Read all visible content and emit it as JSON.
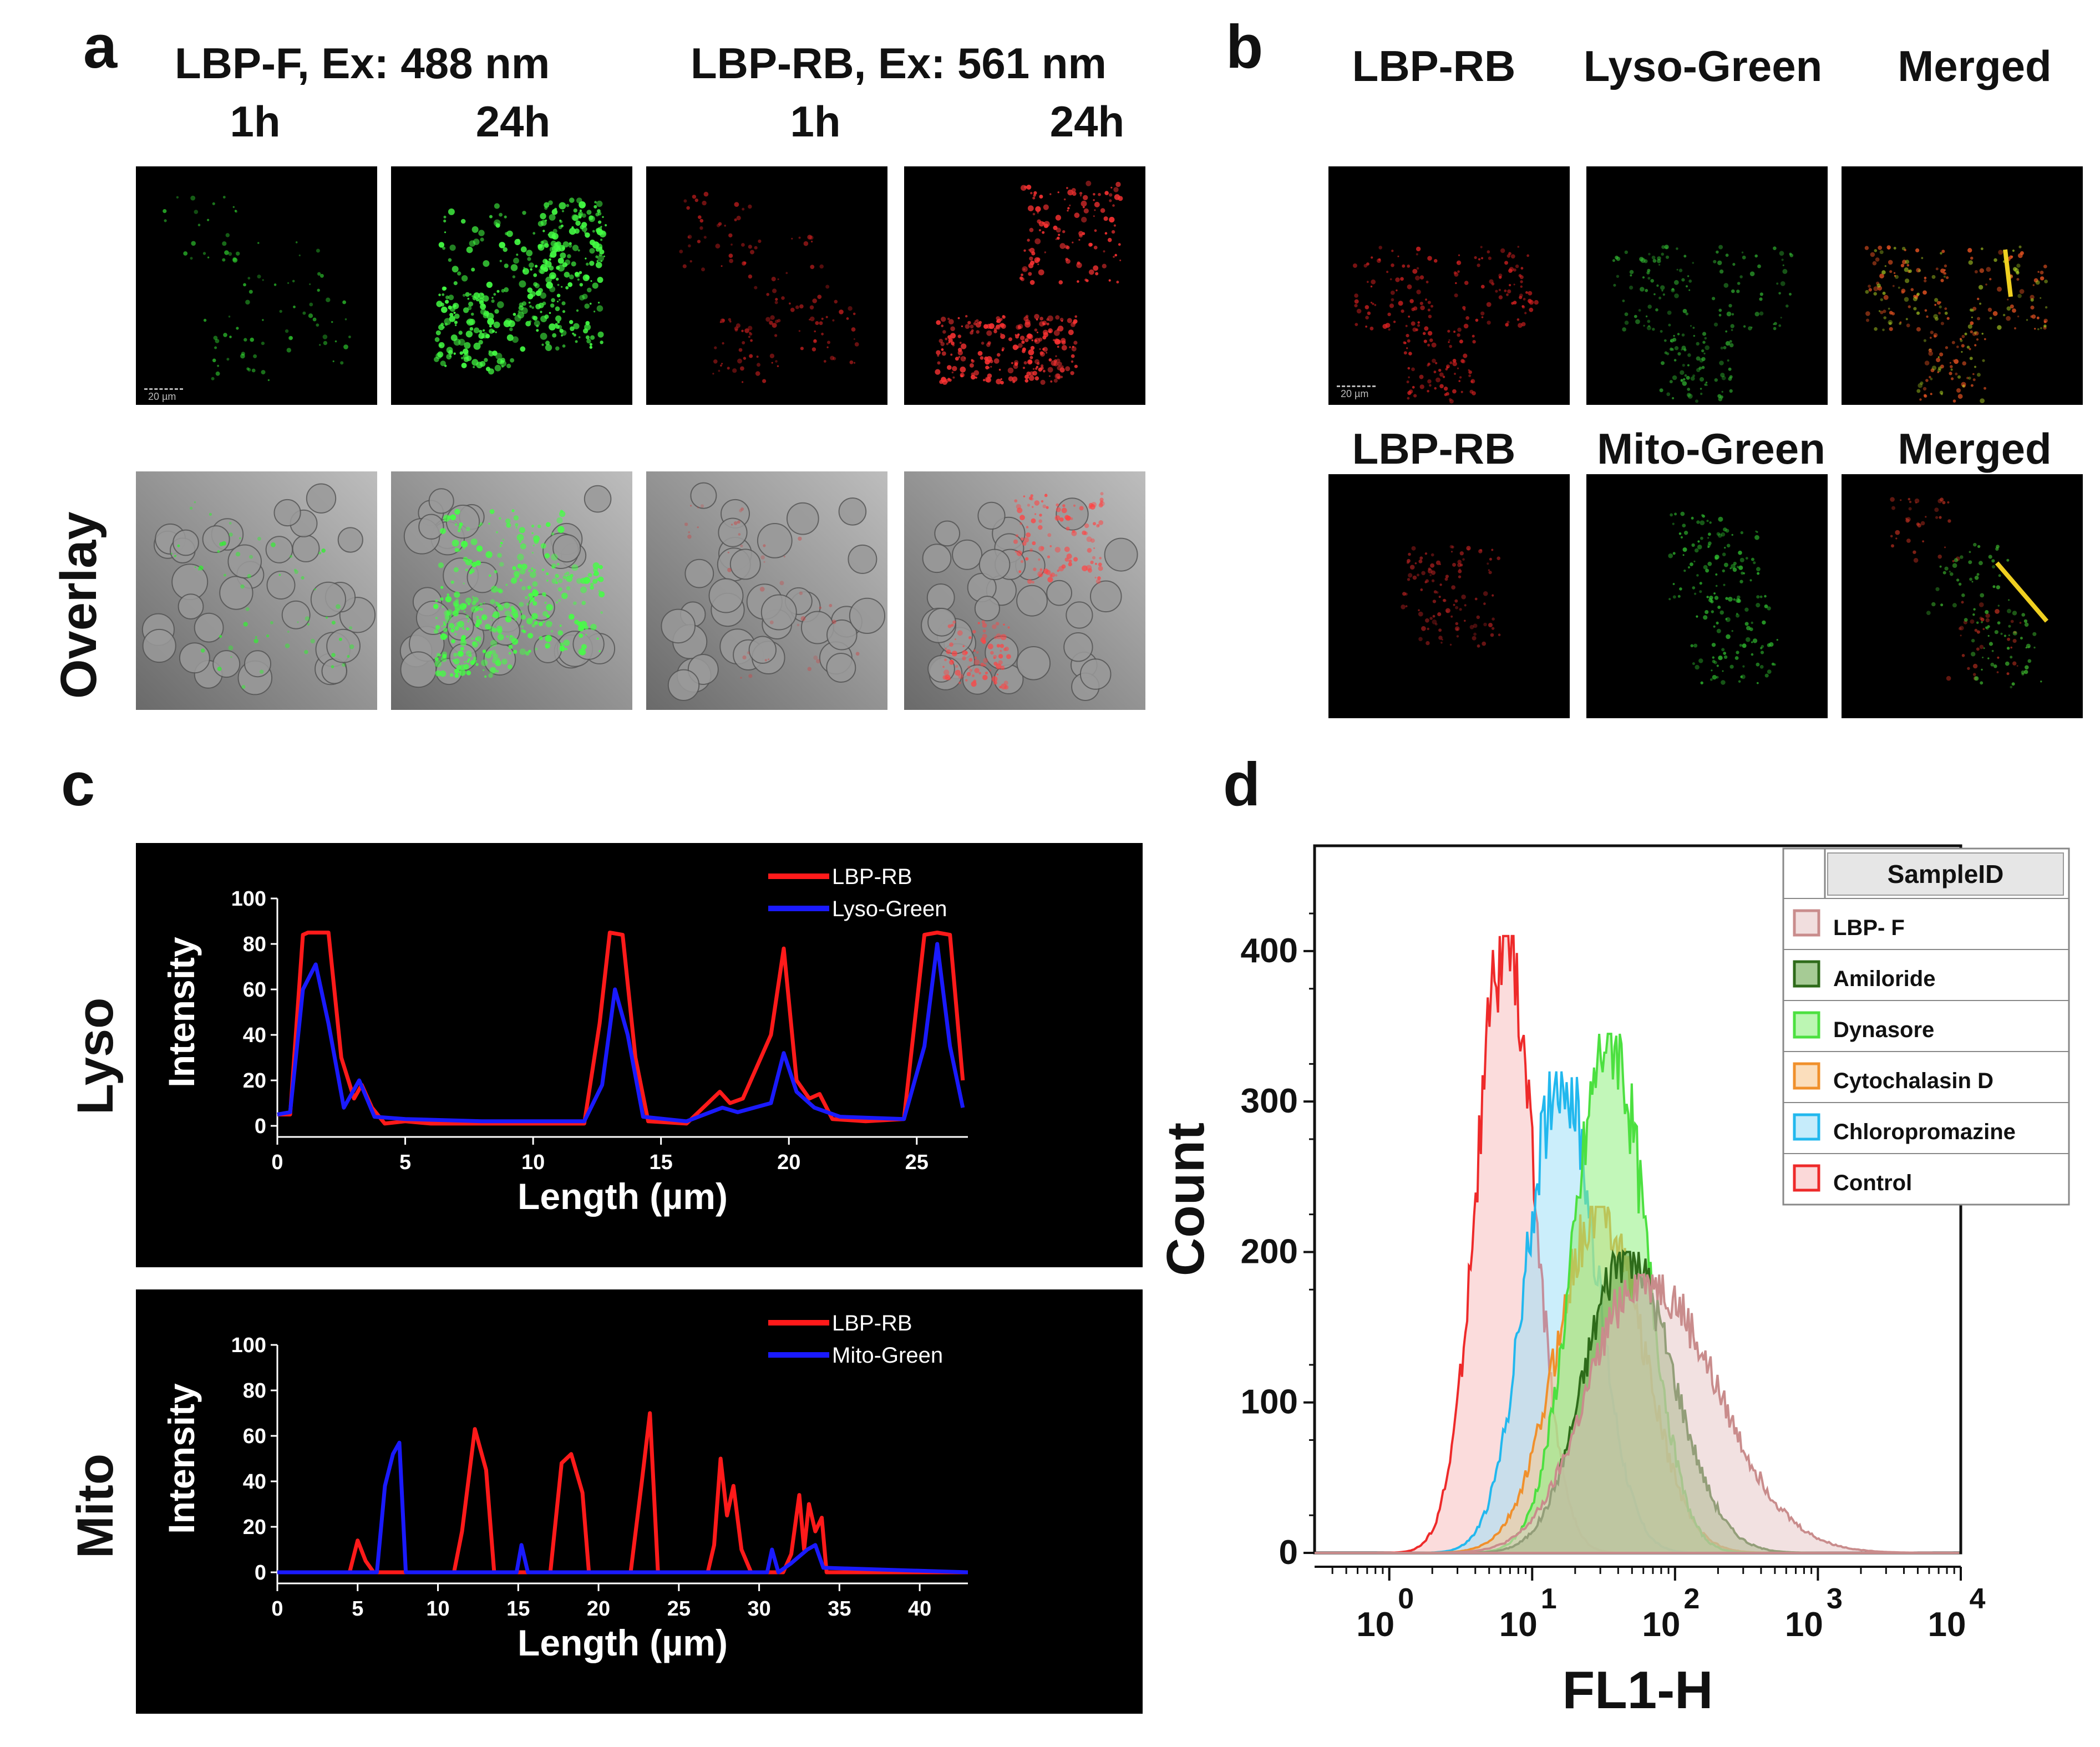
{
  "panel_a": {
    "label": "a",
    "header1": "LBP-F, Ex: 488 nm",
    "header2": "LBP-RB, Ex: 561 nm",
    "times": [
      "1h",
      "24h",
      "1h",
      "24h"
    ],
    "row_label": "Overlay",
    "scale_text": "20 µm"
  },
  "panel_b": {
    "label": "b",
    "row1_headers": [
      "LBP-RB",
      "Lyso-Green",
      "Merged"
    ],
    "row2_headers": [
      "LBP-RB",
      "Mito-Green",
      "Merged"
    ],
    "scale_text": "20 µm"
  },
  "panel_c": {
    "label": "c",
    "row_labels": [
      "Lyso",
      "Mito"
    ]
  },
  "panel_d": {
    "label": "d"
  },
  "colors": {
    "red": "#ff1a1a",
    "blue": "#1a1aff",
    "green_cell": "#39ff39",
    "red_cell": "#ff2a2a"
  },
  "chart_data": [
    {
      "type": "line",
      "id": "lyso",
      "xlabel": "Length (µm)",
      "ylabel": "Intensity",
      "xlim": [
        0,
        27
      ],
      "ylim": [
        0,
        100
      ],
      "xticks": [
        0,
        5,
        10,
        15,
        20,
        25
      ],
      "yticks": [
        0,
        20,
        40,
        60,
        80,
        100
      ],
      "legend_position": "top-right",
      "series": [
        {
          "name": "LBP-RB",
          "color": "#ff1a1a",
          "x": [
            0,
            0.5,
            1,
            1.2,
            2,
            2.5,
            3,
            3.3,
            3.7,
            4.2,
            5,
            6,
            8,
            10,
            12,
            12.6,
            13,
            13.5,
            14,
            14.5,
            16,
            17.3,
            17.7,
            18.2,
            19.3,
            19.8,
            20.3,
            20.8,
            21.2,
            21.7,
            23,
            24.5,
            25.3,
            25.8,
            26.3,
            26.8
          ],
          "y": [
            5,
            5,
            84,
            85,
            85,
            30,
            12,
            18,
            8,
            1,
            2,
            1,
            1,
            1,
            1,
            45,
            85,
            84,
            30,
            2,
            1,
            15,
            10,
            12,
            40,
            78,
            20,
            12,
            14,
            3,
            2,
            3,
            84,
            85,
            84,
            20
          ]
        },
        {
          "name": "Lyso-Green",
          "color": "#1a1aff",
          "x": [
            0,
            0.5,
            1,
            1.5,
            2,
            2.6,
            3.2,
            3.8,
            5,
            8,
            12,
            12.7,
            13.2,
            13.7,
            14.3,
            16,
            17.4,
            18,
            19.3,
            19.8,
            20.3,
            21,
            22,
            24.5,
            25.3,
            25.8,
            26.3,
            26.8
          ],
          "y": [
            5,
            6,
            60,
            71,
            45,
            8,
            20,
            4,
            3,
            2,
            2,
            18,
            60,
            40,
            4,
            2,
            8,
            6,
            10,
            32,
            15,
            8,
            4,
            3,
            35,
            80,
            35,
            8
          ]
        }
      ]
    },
    {
      "type": "line",
      "id": "mito",
      "xlabel": "Length (µm)",
      "ylabel": "Intensity",
      "xlim": [
        0,
        43
      ],
      "ylim": [
        0,
        100
      ],
      "xticks": [
        0,
        5,
        10,
        15,
        20,
        25,
        30,
        35,
        40
      ],
      "yticks": [
        0,
        20,
        40,
        60,
        80,
        100
      ],
      "legend_position": "top-right",
      "series": [
        {
          "name": "LBP-RB",
          "color": "#ff1a1a",
          "x": [
            0,
            4.5,
            5,
            5.5,
            6,
            11,
            11.5,
            12.3,
            13,
            13.5,
            17,
            17.7,
            18.3,
            19,
            19.4,
            22,
            22.7,
            23.2,
            23.7,
            26.8,
            27.2,
            27.6,
            28,
            28.4,
            28.9,
            29.5,
            31.5,
            32,
            32.5,
            32.8,
            33.1,
            33.5,
            33.9,
            34.2,
            43
          ],
          "y": [
            0,
            0,
            14,
            5,
            0,
            0,
            18,
            63,
            45,
            0,
            0,
            48,
            52,
            35,
            0,
            0,
            40,
            70,
            0,
            0,
            12,
            50,
            25,
            38,
            10,
            0,
            0,
            8,
            34,
            10,
            30,
            18,
            24,
            0,
            0
          ]
        },
        {
          "name": "Mito-Green",
          "color": "#1a1aff",
          "x": [
            0,
            6.2,
            6.7,
            7.2,
            7.6,
            8,
            14.9,
            15.2,
            15.6,
            30.5,
            30.8,
            31.2,
            32,
            33,
            33.5,
            34,
            43
          ],
          "y": [
            0,
            0,
            38,
            52,
            57,
            0,
            0,
            12,
            0,
            0,
            10,
            0,
            4,
            10,
            12,
            2,
            0
          ]
        }
      ]
    },
    {
      "type": "area",
      "id": "flow",
      "xlabel": "FL1-H",
      "ylabel": "Count",
      "xscale": "log",
      "xlim": [
        0.3,
        10000
      ],
      "ylim": [
        0,
        470
      ],
      "yticks": [
        0,
        100,
        200,
        300,
        400
      ],
      "xtick_labels": [
        {
          "base": "10",
          "exp": "0"
        },
        {
          "base": "10",
          "exp": "1"
        },
        {
          "base": "10",
          "exp": "2"
        },
        {
          "base": "10",
          "exp": "3"
        },
        {
          "base": "10",
          "exp": "4"
        }
      ],
      "legend_title": "SampleID",
      "legend_position": "top-right",
      "series": [
        {
          "name": "LBP- F",
          "color": "#c98c8c",
          "fill": "#e8c8c8",
          "peak_x": 60,
          "peak_y": 185,
          "width": 0.42,
          "skew": 0.2
        },
        {
          "name": "Amiloride",
          "color": "#2e6b1a",
          "fill": "#6aa84f",
          "peak_x": 45,
          "peak_y": 200,
          "width": 0.3,
          "skew": 0.1
        },
        {
          "name": "Dynasore",
          "color": "#4ce040",
          "fill": "#90f080",
          "peak_x": 35,
          "peak_y": 345,
          "width": 0.25,
          "skew": 0
        },
        {
          "name": "Cytochalasin D",
          "color": "#f0902c",
          "fill": "#f8c890",
          "peak_x": 30,
          "peak_y": 230,
          "width": 0.3,
          "skew": 0
        },
        {
          "name": "Chloropromazine",
          "color": "#22b8ee",
          "fill": "#a0e0f8",
          "peak_x": 16,
          "peak_y": 320,
          "width": 0.24,
          "skew": 0
        },
        {
          "name": "Control",
          "color": "#ee2a2a",
          "fill": "#f8c0c0",
          "peak_x": 6.5,
          "peak_y": 410,
          "width": 0.2,
          "skew": 0
        }
      ]
    }
  ]
}
